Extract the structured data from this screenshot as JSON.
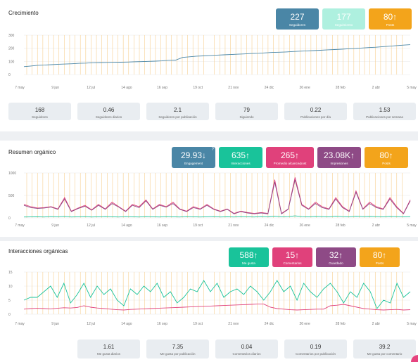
{
  "sections": [
    {
      "title": "Crecimiento",
      "badges": [
        {
          "value": "227",
          "label": "Seguidores",
          "color": "#4a86a6"
        },
        {
          "value": "177",
          "label": "Seguimiento",
          "color": "#aef0df"
        },
        {
          "value": "80↑",
          "label": "Posts",
          "color": "#f3a41b"
        }
      ],
      "stats": [
        {
          "value": "168",
          "label": "Seguidores"
        },
        {
          "value": "0.46",
          "label": "Seguidores diarios"
        },
        {
          "value": "2.1",
          "label": "Seguidores por publicación"
        },
        {
          "value": "79",
          "label": "Siguiendo"
        },
        {
          "value": "0.22",
          "label": "Publicaciones por día"
        },
        {
          "value": "1.53",
          "label": "Publicaciones por semana"
        }
      ]
    },
    {
      "title": "Resumen orgánico",
      "badges": [
        {
          "value": "29.93↓",
          "label": "Engagement",
          "color": "#4a86a6",
          "sup": "?"
        },
        {
          "value": "635↑",
          "label": "Interacciones",
          "color": "#19c39a"
        },
        {
          "value": "265↑",
          "label": "Promedio alcance/post",
          "color": "#e0417b"
        },
        {
          "value": "23.08K↑",
          "label": "Impresiones",
          "color": "#8e4a86"
        },
        {
          "value": "80↑",
          "label": "Posts",
          "color": "#f3a41b"
        }
      ]
    },
    {
      "title": "Interacciones orgánicas",
      "badges": [
        {
          "value": "588↑",
          "label": "Me gusta",
          "color": "#19c39a"
        },
        {
          "value": "15↑",
          "label": "Comentarios",
          "color": "#e0417b"
        },
        {
          "value": "32↑",
          "label": "Guardado",
          "color": "#8e4a86"
        },
        {
          "value": "80↑",
          "label": "Posts",
          "color": "#f3a41b"
        }
      ],
      "stats": [
        {
          "value": "1.61",
          "label": "Me gusta diarios"
        },
        {
          "value": "7.35",
          "label": "Me gusta por publicación"
        },
        {
          "value": "0.04",
          "label": "Comentarios diarios"
        },
        {
          "value": "0.19",
          "label": "Comentarios por publicación"
        },
        {
          "value": "39.2",
          "label": "Me gusta por comentario"
        }
      ]
    }
  ],
  "chart_data": [
    {
      "type": "line",
      "x_tick_labels": [
        "7 may",
        "9 jun",
        "12 jul",
        "14 ago",
        "16 sep",
        "19 oct",
        "21 nov",
        "24 dic",
        "26 ene",
        "28 feb",
        "2 abr",
        "5 may"
      ],
      "ylim": [
        0,
        300
      ],
      "y_ticks": [
        0,
        100,
        200,
        300
      ],
      "grid": true,
      "post_markers_color": "#f7cf8f",
      "series": [
        {
          "color": "#4a86a6",
          "values": [
            60,
            65,
            70,
            72,
            75,
            78,
            80,
            82,
            85,
            87,
            90,
            91,
            92,
            93,
            94,
            95,
            97,
            98,
            100,
            102,
            104,
            108,
            110,
            130,
            135,
            140,
            142,
            145,
            148,
            150,
            152,
            155,
            157,
            160,
            162,
            165,
            168,
            170,
            172,
            175,
            178,
            180,
            182,
            185,
            188,
            190,
            193,
            196,
            199,
            202,
            205,
            208,
            212,
            216,
            220,
            224,
            227
          ]
        }
      ]
    },
    {
      "type": "line",
      "x_tick_labels": [
        "7 may",
        "9 jun",
        "12 jul",
        "14 ago",
        "16 sep",
        "19 oct",
        "21 nov",
        "24 dic",
        "26 ene",
        "28 feb",
        "2 abr",
        "5 may"
      ],
      "ylim": [
        0,
        1000
      ],
      "y_ticks": [
        0,
        500,
        1000
      ],
      "grid": true,
      "post_markers_color": "#f7cf8f",
      "series": [
        {
          "color": "#e0417b",
          "values": [
            300,
            250,
            220,
            230,
            250,
            200,
            450,
            150,
            220,
            280,
            180,
            300,
            200,
            350,
            250,
            150,
            300,
            250,
            400,
            200,
            300,
            250,
            350,
            200,
            150,
            250,
            200,
            300,
            200,
            150,
            200,
            100,
            150,
            120,
            100,
            120,
            100,
            850,
            100,
            200,
            900,
            300,
            200,
            350,
            250,
            200,
            450,
            250,
            150,
            600,
            200,
            350,
            250,
            200,
            450,
            250,
            100,
            400
          ]
        },
        {
          "color": "#8e4a86",
          "values": [
            280,
            230,
            210,
            220,
            240,
            190,
            420,
            140,
            210,
            260,
            170,
            280,
            190,
            320,
            240,
            140,
            280,
            230,
            380,
            190,
            280,
            240,
            320,
            190,
            140,
            230,
            190,
            280,
            190,
            140,
            190,
            90,
            140,
            110,
            90,
            110,
            90,
            800,
            90,
            190,
            850,
            280,
            190,
            320,
            230,
            190,
            420,
            230,
            140,
            570,
            190,
            320,
            230,
            190,
            420,
            230,
            90,
            380
          ]
        },
        {
          "color": "#19c39a",
          "values": [
            20,
            22,
            25,
            20,
            30,
            25,
            35,
            20,
            25,
            30,
            20,
            25,
            30,
            25,
            20,
            30,
            25,
            20,
            30,
            25,
            20,
            30,
            25,
            20,
            30,
            25,
            20,
            25,
            30,
            20,
            25,
            20,
            30,
            25,
            20,
            30,
            25,
            40,
            25,
            30,
            45,
            30,
            25,
            35,
            30,
            25,
            40,
            30,
            25,
            40,
            30,
            35,
            30,
            25,
            35,
            30,
            25,
            30
          ]
        }
      ]
    },
    {
      "type": "line",
      "x_tick_labels": [
        "7 may",
        "9 jun",
        "12 jul",
        "14 ago",
        "16 sep",
        "19 oct",
        "21 nov",
        "24 dic",
        "26 ene",
        "28 feb",
        "2 abr",
        "5 may"
      ],
      "ylim": [
        0,
        15
      ],
      "y_ticks": [
        0,
        5,
        10,
        15
      ],
      "grid": true,
      "post_markers_color": "#f7cf8f",
      "series": [
        {
          "color": "#19c39a",
          "values": [
            5,
            6,
            6,
            8,
            10,
            6,
            11,
            4,
            7,
            11,
            6,
            10,
            7,
            9,
            5,
            3,
            9,
            7,
            10,
            8,
            11,
            6,
            8,
            4,
            6,
            9,
            8,
            12,
            8,
            11,
            6,
            8,
            9,
            7,
            10,
            8,
            5,
            8,
            12,
            8,
            10,
            5,
            11,
            8,
            6,
            9,
            11,
            8,
            4,
            8,
            6,
            11,
            8,
            2,
            5,
            4,
            11,
            6,
            8
          ]
        },
        {
          "color": "#e0417b",
          "values": [
            1.8,
            2,
            2.1,
            2,
            1.9,
            2.1,
            2.3,
            2.2,
            2.4,
            3,
            2.5,
            2.2,
            2,
            1.8,
            1.6,
            1.5,
            1.7,
            1.8,
            1.9,
            2,
            2.1,
            2.2,
            2.3,
            2.4,
            2.5,
            2.6,
            2.7,
            2.8,
            2.9,
            3,
            3.1,
            3.2,
            3.3,
            3.4,
            3.5,
            3.6,
            3.6,
            2.5,
            2,
            1.8,
            1.6,
            1.5,
            1.6,
            1.7,
            1.8,
            1.8,
            3,
            3.2,
            3.5,
            3,
            2.5,
            2,
            1.8,
            1.6,
            1.5,
            1.6,
            1.7,
            1.5,
            1.6
          ]
        }
      ]
    }
  ]
}
